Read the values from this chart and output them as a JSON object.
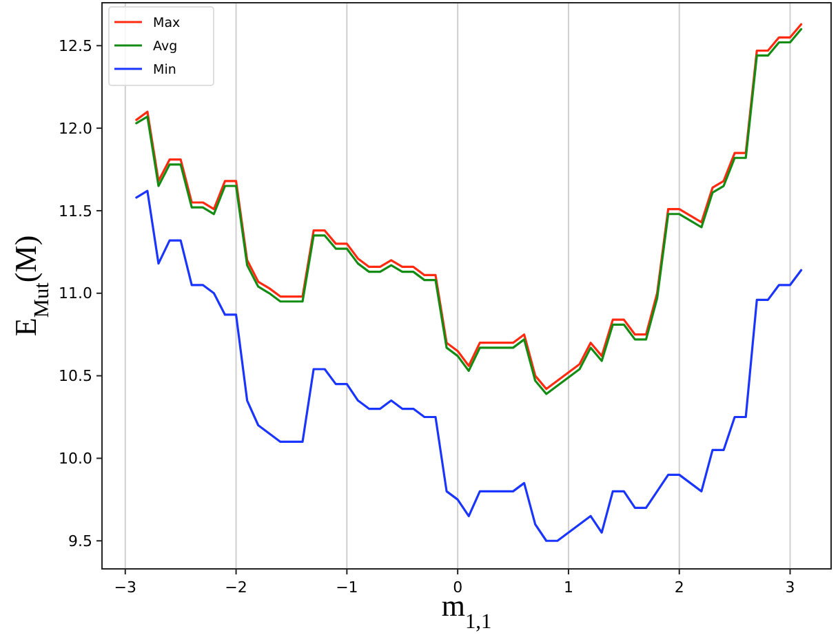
{
  "chart_data": {
    "type": "line",
    "xlabel": "m$_{1,1}$",
    "ylabel": "E$_{Mut}$(M)",
    "x": [
      -2.9,
      -2.8,
      -2.7,
      -2.6,
      -2.5,
      -2.4,
      -2.3,
      -2.2,
      -2.1,
      -2.0,
      -1.9,
      -1.8,
      -1.7,
      -1.6,
      -1.5,
      -1.4,
      -1.3,
      -1.2,
      -1.1,
      -1.0,
      -0.9,
      -0.8,
      -0.7,
      -0.6,
      -0.5,
      -0.4,
      -0.3,
      -0.2,
      -0.1,
      0,
      0.1,
      0.2,
      0.3,
      0.4,
      0.5,
      0.6,
      0.7,
      0.8,
      0.9,
      1.0,
      1.1,
      1.2,
      1.3,
      1.4,
      1.5,
      1.6,
      1.7,
      1.8,
      1.9,
      2.0,
      2.1,
      2.2,
      2.3,
      2.4,
      2.5,
      2.6,
      2.7,
      2.8,
      2.9,
      3.0,
      3.1
    ],
    "series": [
      {
        "name": "Max",
        "color": "#ff2a10",
        "values": [
          12.05,
          12.1,
          11.68,
          11.81,
          11.81,
          11.55,
          11.55,
          11.51,
          11.68,
          11.68,
          11.2,
          11.07,
          11.03,
          10.98,
          10.98,
          10.98,
          11.38,
          11.38,
          11.3,
          11.3,
          11.21,
          11.16,
          11.16,
          11.2,
          11.16,
          11.16,
          11.11,
          11.11,
          10.7,
          10.65,
          10.56,
          10.7,
          10.7,
          10.7,
          10.7,
          10.75,
          10.5,
          10.42,
          10.47,
          10.52,
          10.57,
          10.7,
          10.62,
          10.84,
          10.84,
          10.75,
          10.75,
          11.0,
          11.51,
          11.51,
          11.47,
          11.43,
          11.64,
          11.68,
          11.85,
          11.85,
          12.47,
          12.47,
          12.55,
          12.55,
          12.63
        ]
      },
      {
        "name": "Avg",
        "color": "#148c14",
        "values": [
          12.03,
          12.07,
          11.65,
          11.78,
          11.78,
          11.52,
          11.52,
          11.48,
          11.65,
          11.65,
          11.17,
          11.04,
          11.0,
          10.95,
          10.95,
          10.95,
          11.35,
          11.35,
          11.27,
          11.27,
          11.18,
          11.13,
          11.13,
          11.17,
          11.13,
          11.13,
          11.08,
          11.08,
          10.67,
          10.62,
          10.53,
          10.67,
          10.67,
          10.67,
          10.67,
          10.72,
          10.47,
          10.39,
          10.44,
          10.49,
          10.54,
          10.67,
          10.59,
          10.81,
          10.81,
          10.72,
          10.72,
          10.97,
          11.48,
          11.48,
          11.44,
          11.4,
          11.61,
          11.65,
          11.82,
          11.82,
          12.44,
          12.44,
          12.52,
          12.52,
          12.6
        ]
      },
      {
        "name": "Min",
        "color": "#1a35ff",
        "values": [
          11.58,
          11.62,
          11.18,
          11.32,
          11.32,
          11.05,
          11.05,
          11.0,
          10.87,
          10.87,
          10.35,
          10.2,
          10.15,
          10.1,
          10.1,
          10.1,
          10.54,
          10.54,
          10.45,
          10.45,
          10.35,
          10.3,
          10.3,
          10.35,
          10.3,
          10.3,
          10.25,
          10.25,
          9.8,
          9.75,
          9.65,
          9.8,
          9.8,
          9.8,
          9.8,
          9.85,
          9.6,
          9.5,
          9.5,
          9.55,
          9.6,
          9.65,
          9.55,
          9.8,
          9.8,
          9.7,
          9.7,
          9.8,
          9.9,
          9.9,
          9.85,
          9.8,
          10.05,
          10.05,
          10.25,
          10.25,
          10.96,
          10.96,
          11.05,
          11.05,
          11.14
        ]
      }
    ],
    "xlim": [
      -3.21,
      3.37
    ],
    "ylim": [
      9.33,
      12.76
    ],
    "xticks": [
      {
        "value": -3,
        "label": "−3"
      },
      {
        "value": -2,
        "label": "−2"
      },
      {
        "value": -1,
        "label": "−1"
      },
      0,
      1,
      2,
      3
    ],
    "yticks": [
      9.5,
      {
        "value": 10,
        "label": "10.0"
      },
      10.5,
      {
        "value": 11,
        "label": "11.0"
      },
      11.5,
      {
        "value": 12,
        "label": "12.0"
      },
      12.5
    ],
    "grid": "x",
    "legend": "top left",
    "marker": "none",
    "line_style": "solid"
  }
}
